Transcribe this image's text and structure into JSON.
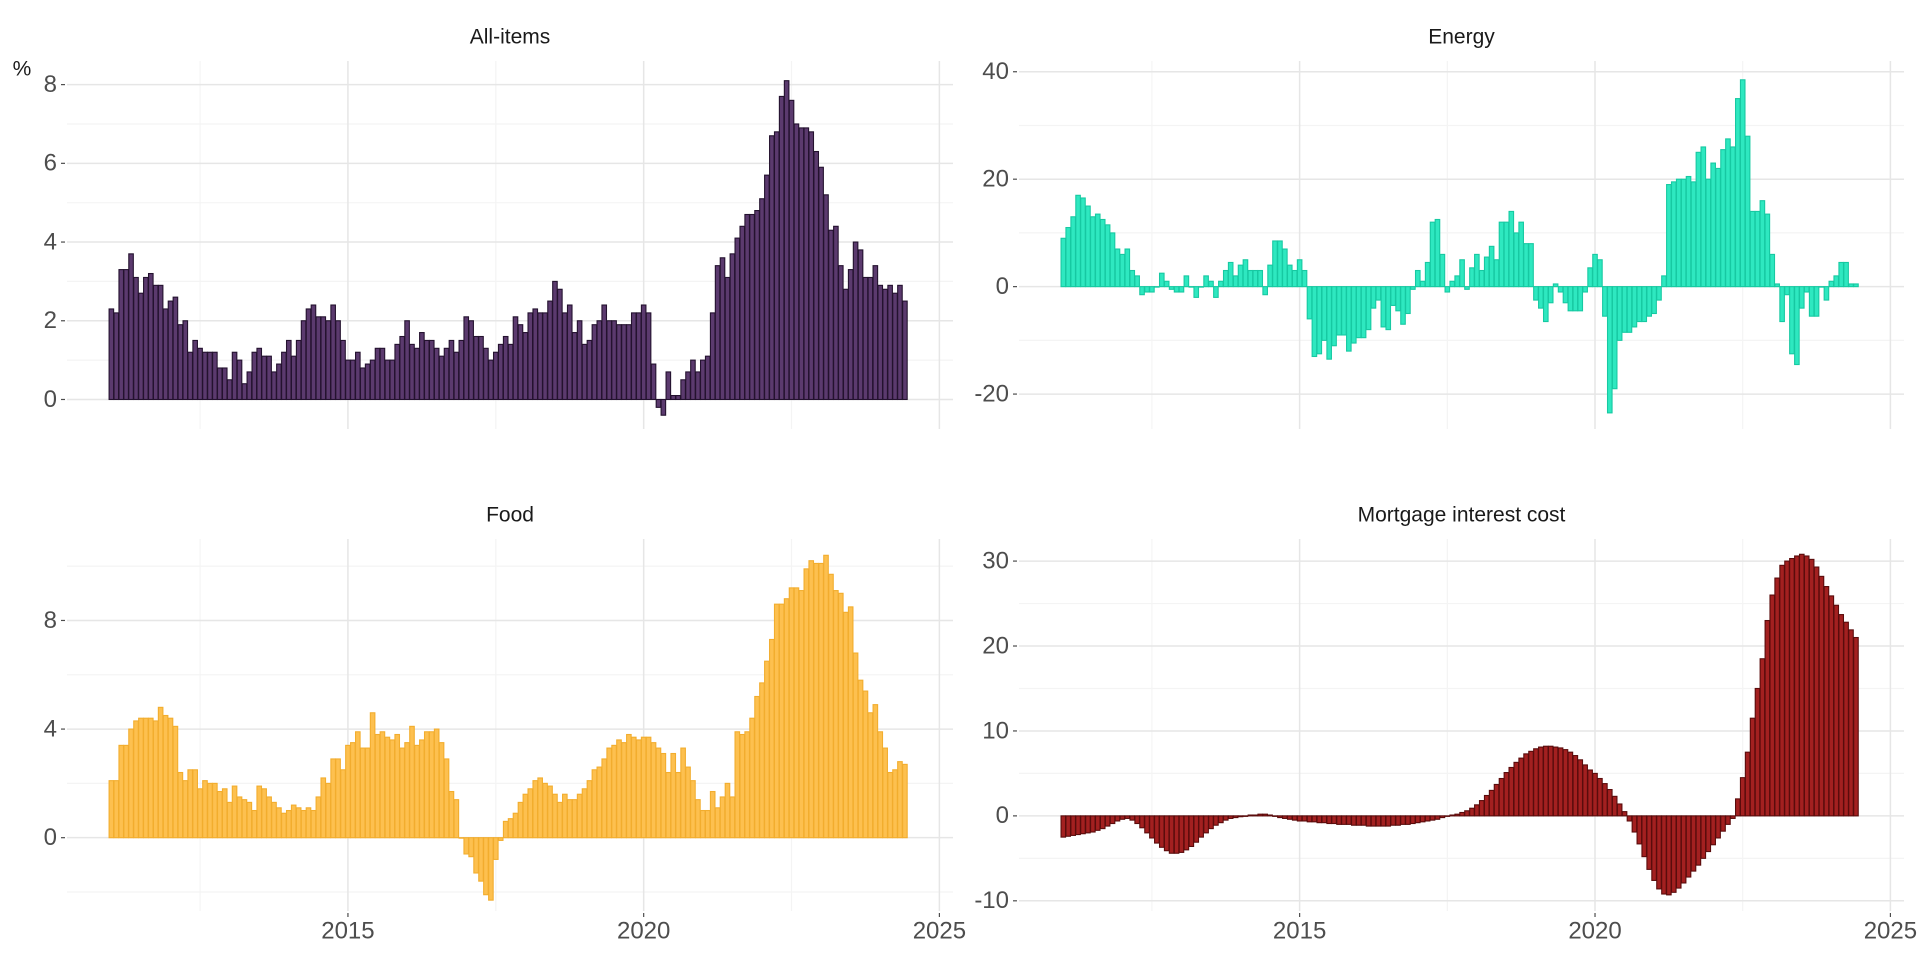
{
  "chart_data": {
    "type": "bar",
    "ylabel": "%",
    "grid": true,
    "xlim": [
      2010.25,
      2025.23
    ],
    "xticks": [
      2015,
      2020,
      2025
    ],
    "xminor": [
      2012.5,
      2017.5,
      2022.5
    ],
    "x": [
      2011,
      2011.083,
      2011.167,
      2011.25,
      2011.333,
      2011.417,
      2011.5,
      2011.583,
      2011.667,
      2011.75,
      2011.833,
      2011.917,
      2012,
      2012.083,
      2012.167,
      2012.25,
      2012.333,
      2012.417,
      2012.5,
      2012.583,
      2012.667,
      2012.75,
      2012.833,
      2012.917,
      2013,
      2013.083,
      2013.167,
      2013.25,
      2013.333,
      2013.417,
      2013.5,
      2013.583,
      2013.667,
      2013.75,
      2013.833,
      2013.917,
      2014,
      2014.083,
      2014.167,
      2014.25,
      2014.333,
      2014.417,
      2014.5,
      2014.583,
      2014.667,
      2014.75,
      2014.833,
      2014.917,
      2015,
      2015.083,
      2015.167,
      2015.25,
      2015.333,
      2015.417,
      2015.5,
      2015.583,
      2015.667,
      2015.75,
      2015.833,
      2015.917,
      2016,
      2016.083,
      2016.167,
      2016.25,
      2016.333,
      2016.417,
      2016.5,
      2016.583,
      2016.667,
      2016.75,
      2016.833,
      2016.917,
      2017,
      2017.083,
      2017.167,
      2017.25,
      2017.333,
      2017.417,
      2017.5,
      2017.583,
      2017.667,
      2017.75,
      2017.833,
      2017.917,
      2018,
      2018.083,
      2018.167,
      2018.25,
      2018.333,
      2018.417,
      2018.5,
      2018.583,
      2018.667,
      2018.75,
      2018.833,
      2018.917,
      2019,
      2019.083,
      2019.167,
      2019.25,
      2019.333,
      2019.417,
      2019.5,
      2019.583,
      2019.667,
      2019.75,
      2019.833,
      2019.917,
      2020,
      2020.083,
      2020.167,
      2020.25,
      2020.333,
      2020.417,
      2020.5,
      2020.583,
      2020.667,
      2020.75,
      2020.833,
      2020.917,
      2021,
      2021.083,
      2021.167,
      2021.25,
      2021.333,
      2021.417,
      2021.5,
      2021.583,
      2021.667,
      2021.75,
      2021.833,
      2021.917,
      2022,
      2022.083,
      2022.167,
      2022.25,
      2022.333,
      2022.417,
      2022.5,
      2022.583,
      2022.667,
      2022.75,
      2022.833,
      2022.917,
      2023,
      2023.083,
      2023.167,
      2023.25,
      2023.333,
      2023.417,
      2023.5,
      2023.583,
      2023.667,
      2023.75,
      2023.833,
      2023.917,
      2024,
      2024.083,
      2024.167,
      2024.25,
      2024.333,
      2024.417
    ],
    "series": [
      {
        "name": "All-items",
        "color": "#5b3a6e",
        "edgecolor": "#24122f",
        "ylim": [
          -0.75,
          8.6
        ],
        "yticks": [
          0,
          2,
          4,
          6,
          8
        ],
        "yminor": [
          1,
          3,
          5,
          7
        ],
        "values": [
          2.3,
          2.2,
          3.3,
          3.3,
          3.7,
          3.1,
          2.7,
          3.1,
          3.2,
          2.9,
          2.9,
          2.3,
          2.5,
          2.6,
          1.9,
          2.0,
          1.2,
          1.5,
          1.3,
          1.2,
          1.2,
          1.2,
          0.8,
          0.8,
          0.5,
          1.2,
          1.0,
          0.4,
          0.7,
          1.2,
          1.3,
          1.1,
          1.1,
          0.7,
          0.9,
          1.2,
          1.5,
          1.1,
          1.5,
          2.0,
          2.3,
          2.4,
          2.1,
          2.1,
          2.0,
          2.4,
          2.0,
          1.5,
          1.0,
          1.0,
          1.2,
          0.8,
          0.9,
          1.0,
          1.3,
          1.3,
          1.0,
          1.0,
          1.4,
          1.6,
          2.0,
          1.4,
          1.3,
          1.7,
          1.5,
          1.5,
          1.3,
          1.1,
          1.3,
          1.5,
          1.2,
          1.5,
          2.1,
          2.0,
          1.6,
          1.6,
          1.3,
          1.0,
          1.2,
          1.4,
          1.6,
          1.4,
          2.1,
          1.9,
          1.7,
          2.2,
          2.3,
          2.2,
          2.2,
          2.5,
          3.0,
          2.8,
          2.2,
          2.4,
          1.7,
          2.0,
          1.4,
          1.5,
          1.9,
          2.0,
          2.4,
          2.0,
          2.0,
          1.9,
          1.9,
          1.9,
          2.2,
          2.2,
          2.4,
          2.2,
          0.9,
          -0.2,
          -0.4,
          0.7,
          0.1,
          0.1,
          0.5,
          0.7,
          1.0,
          0.7,
          1.0,
          1.1,
          2.2,
          3.4,
          3.6,
          3.1,
          3.7,
          4.1,
          4.4,
          4.7,
          4.7,
          4.8,
          5.1,
          5.7,
          6.7,
          6.8,
          7.7,
          8.1,
          7.6,
          7.0,
          6.9,
          6.9,
          6.8,
          6.3,
          5.9,
          5.2,
          4.3,
          4.4,
          3.4,
          2.8,
          3.3,
          4.0,
          3.8,
          3.1,
          3.1,
          3.4,
          2.9,
          2.8,
          2.9,
          2.7,
          2.9,
          2.5
        ]
      },
      {
        "name": "Energy",
        "color": "#2ee8c0",
        "edgecolor": "#17c9a2",
        "ylim": [
          -26.5,
          42
        ],
        "yticks": [
          -20,
          0,
          20,
          40
        ],
        "yminor": [
          -10,
          10,
          30
        ],
        "values": [
          9,
          11,
          13,
          17,
          16.5,
          15,
          13,
          13.5,
          12.5,
          11.5,
          10,
          7,
          6,
          7,
          3,
          2,
          -1.5,
          -1,
          -1,
          0,
          2.5,
          1,
          -0.5,
          -1,
          -1,
          2,
          0,
          -2,
          0,
          2,
          1,
          -2,
          1,
          3,
          4.5,
          2,
          4,
          5,
          3,
          3,
          3,
          -1.5,
          4,
          8.5,
          8.5,
          7,
          4,
          3,
          5,
          3,
          -6,
          -13,
          -12.5,
          -10,
          -13.5,
          -11,
          -9,
          -9,
          -12,
          -10.5,
          -9.5,
          -9.5,
          -8,
          -4,
          -2.5,
          -7.5,
          -8,
          -3.5,
          -4.5,
          -7,
          -5,
          -0.5,
          3,
          1,
          4.5,
          12,
          12.5,
          6,
          -1,
          1,
          2,
          5,
          -0.5,
          3.5,
          6,
          3,
          5.5,
          7.5,
          5,
          12,
          12,
          14,
          10,
          12,
          8,
          8,
          -2.5,
          -4,
          -6.5,
          -3,
          0.5,
          -1,
          -3,
          -4.5,
          -4.5,
          -4.5,
          -1,
          3.5,
          6,
          5,
          -5.5,
          -23.5,
          -19,
          -10,
          -8.5,
          -8.5,
          -7.5,
          -6.5,
          -6.5,
          -5.5,
          -5,
          -2.5,
          2,
          19,
          19.5,
          20,
          20,
          20.5,
          19.5,
          25,
          26,
          20,
          23,
          22,
          25.5,
          27.5,
          26,
          35,
          38.5,
          28,
          14,
          14,
          16,
          13.5,
          6,
          0.5,
          -6.5,
          -1.5,
          -12.5,
          -14.5,
          -4,
          -1,
          -5.5,
          -5.5,
          0,
          -2.5,
          1,
          2,
          4.5,
          4.5,
          0.5,
          0.5
        ]
      },
      {
        "name": "Food",
        "color": "#fdc04f",
        "edgecolor": "#f2ad2e",
        "ylim": [
          -2.7,
          11
        ],
        "yticks": [
          0,
          4,
          8
        ],
        "yminor": [
          -2,
          2,
          6,
          10
        ],
        "values": [
          2.1,
          2.1,
          3.4,
          3.4,
          4.0,
          4.3,
          4.4,
          4.4,
          4.4,
          4.3,
          4.8,
          4.5,
          4.4,
          4.1,
          2.4,
          2.1,
          2.5,
          2.5,
          1.8,
          2.1,
          2.0,
          2.0,
          1.7,
          1.8,
          1.3,
          1.9,
          1.5,
          1.4,
          1.3,
          1.0,
          1.9,
          1.8,
          1.5,
          1.3,
          1.1,
          0.9,
          1.0,
          1.2,
          1.1,
          1.0,
          1.1,
          1.0,
          1.5,
          2.2,
          2.0,
          2.9,
          2.9,
          2.5,
          3.4,
          3.5,
          3.9,
          3.3,
          3.3,
          4.6,
          3.8,
          3.9,
          3.7,
          3.6,
          3.8,
          3.3,
          3.5,
          4.1,
          3.4,
          3.6,
          3.9,
          3.9,
          4.0,
          3.5,
          2.9,
          1.7,
          1.4,
          0.0,
          -0.6,
          -0.7,
          -1.3,
          -1.6,
          -2.1,
          -2.3,
          -0.8,
          -0.1,
          0.6,
          0.7,
          0.9,
          1.3,
          1.6,
          1.8,
          2.1,
          2.2,
          2.0,
          1.9,
          1.6,
          1.3,
          1.6,
          1.4,
          1.4,
          1.6,
          1.8,
          2.1,
          2.5,
          2.6,
          2.9,
          3.3,
          3.4,
          3.6,
          3.5,
          3.8,
          3.7,
          3.6,
          3.7,
          3.7,
          3.5,
          3.3,
          3.1,
          2.4,
          3.1,
          2.4,
          3.3,
          2.6,
          2.1,
          1.4,
          1.0,
          1.0,
          1.7,
          1.1,
          1.5,
          2.0,
          1.5,
          3.9,
          3.8,
          3.9,
          4.4,
          5.2,
          5.7,
          6.5,
          7.3,
          8.6,
          8.6,
          8.8,
          9.2,
          9.2,
          9.1,
          9.9,
          10.2,
          10.1,
          10.1,
          10.4,
          9.7,
          9.1,
          9.0,
          8.3,
          8.5,
          6.8,
          5.8,
          5.4,
          4.6,
          4.9,
          3.9,
          3.3,
          2.4,
          2.5,
          2.8,
          2.7
        ]
      },
      {
        "name": "Mortgage interest cost",
        "color": "#a32020",
        "edgecolor": "#5a0c0c",
        "ylim": [
          -11.2,
          32.6
        ],
        "yticks": [
          -10,
          0,
          10,
          20,
          30
        ],
        "yminor": [
          -5,
          5,
          15,
          25
        ],
        "values": [
          -2.5,
          -2.4,
          -2.3,
          -2.2,
          -2.1,
          -2.0,
          -1.9,
          -1.7,
          -1.5,
          -1.2,
          -0.9,
          -0.6,
          -0.4,
          -0.3,
          -0.5,
          -0.9,
          -1.4,
          -2.0,
          -2.6,
          -3.2,
          -3.7,
          -4.1,
          -4.4,
          -4.4,
          -4.3,
          -4.0,
          -3.6,
          -3.1,
          -2.5,
          -2.0,
          -1.5,
          -1.1,
          -0.8,
          -0.5,
          -0.3,
          -0.2,
          -0.1,
          0.0,
          0.1,
          0.1,
          0.2,
          0.2,
          0.1,
          0.0,
          -0.2,
          -0.3,
          -0.4,
          -0.5,
          -0.6,
          -0.6,
          -0.7,
          -0.7,
          -0.8,
          -0.8,
          -0.9,
          -0.9,
          -1.0,
          -1.0,
          -1.0,
          -1.1,
          -1.1,
          -1.1,
          -1.2,
          -1.2,
          -1.2,
          -1.2,
          -1.2,
          -1.1,
          -1.1,
          -1.0,
          -1.0,
          -0.9,
          -0.8,
          -0.7,
          -0.6,
          -0.5,
          -0.4,
          -0.2,
          0.0,
          0.1,
          0.2,
          0.4,
          0.6,
          0.9,
          1.3,
          1.8,
          2.4,
          3.0,
          3.7,
          4.4,
          5.1,
          5.7,
          6.3,
          6.8,
          7.3,
          7.6,
          7.9,
          8.1,
          8.2,
          8.2,
          8.1,
          8.0,
          7.8,
          7.5,
          7.1,
          6.6,
          6.0,
          5.4,
          5.0,
          4.4,
          3.8,
          3.1,
          2.3,
          1.4,
          0.5,
          -0.6,
          -1.9,
          -3.3,
          -4.8,
          -6.3,
          -7.6,
          -8.6,
          -9.2,
          -9.3,
          -9.0,
          -8.5,
          -7.9,
          -7.2,
          -6.5,
          -5.8,
          -5.0,
          -4.2,
          -3.4,
          -2.6,
          -1.8,
          -1.0,
          -0.3,
          2.0,
          4.5,
          7.5,
          11.5,
          15.0,
          18.5,
          23.0,
          26.0,
          28.0,
          29.5,
          30.0,
          30.3,
          30.6,
          30.8,
          30.6,
          30.2,
          29.3,
          28.2,
          27.0,
          25.9,
          24.8,
          23.7,
          22.8,
          21.9,
          21.0
        ]
      }
    ]
  }
}
